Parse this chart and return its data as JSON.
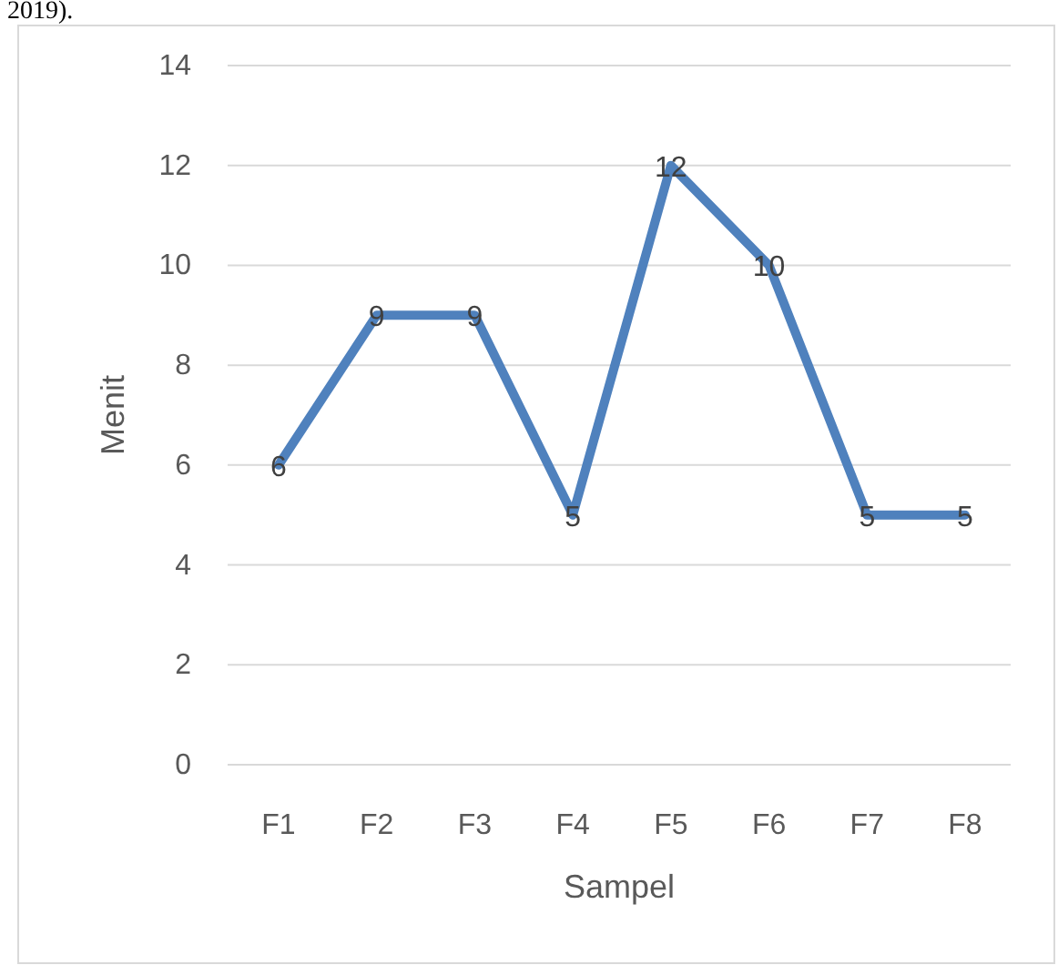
{
  "chart_data": {
    "type": "line",
    "xlabel": "Sampel",
    "ylabel": "Menit",
    "categories": [
      "F1",
      "F2",
      "F3",
      "F4",
      "F5",
      "F6",
      "F7",
      "F8"
    ],
    "series": [
      {
        "color": "#4f81bd",
        "values": [
          6,
          9,
          9,
          5,
          12,
          10,
          5,
          5
        ]
      }
    ],
    "ylim": [
      0,
      14
    ],
    "yticks": [
      0,
      2,
      4,
      6,
      8,
      10,
      12,
      14
    ],
    "grid": "y",
    "data_labels": true,
    "marker": "none",
    "line_style": "solid",
    "annotations": [
      "2019)."
    ]
  }
}
